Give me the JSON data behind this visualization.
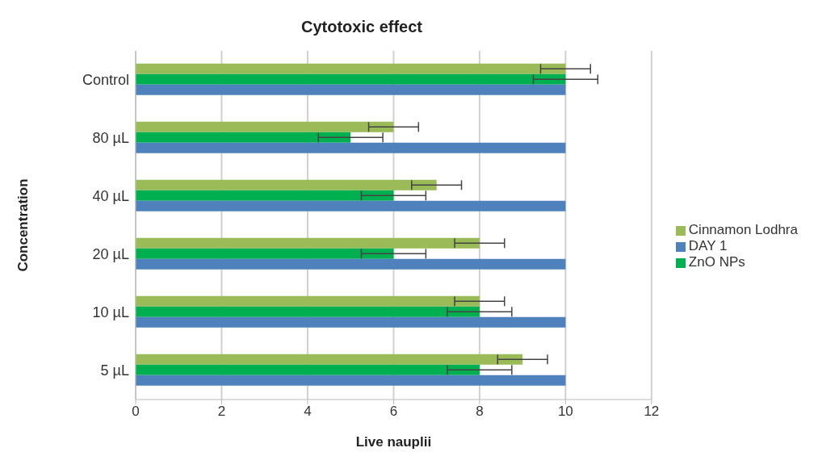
{
  "chart_data": {
    "type": "bar",
    "orientation": "horizontal",
    "title": "Cytotoxic effect",
    "xlabel": "Live nauplii",
    "ylabel": "Concentration",
    "categories": [
      "Control",
      "80 µL",
      "40 µL",
      "20 µL",
      "10 µL",
      "5 µL"
    ],
    "series": [
      {
        "name": "Cinnamon Lodhra",
        "color": "#9bbb59",
        "values": [
          10,
          6,
          7,
          8,
          8,
          9
        ],
        "errors": [
          0.58,
          0.58,
          0.58,
          0.58,
          0.58,
          0.58
        ]
      },
      {
        "name": "ZnO NPs",
        "color": "#00b050",
        "values": [
          10,
          5,
          6,
          6,
          8,
          8
        ],
        "errors": [
          0.75,
          0.75,
          0.75,
          0.75,
          0.75,
          0.75
        ]
      },
      {
        "name": "DAY 1",
        "color": "#4f81bd",
        "values": [
          10,
          10,
          10,
          10,
          10,
          10
        ]
      }
    ],
    "xlim": [
      0,
      12
    ],
    "xticks": [
      0,
      2,
      4,
      6,
      8,
      10,
      12
    ],
    "grid": "x",
    "legend": "right"
  }
}
